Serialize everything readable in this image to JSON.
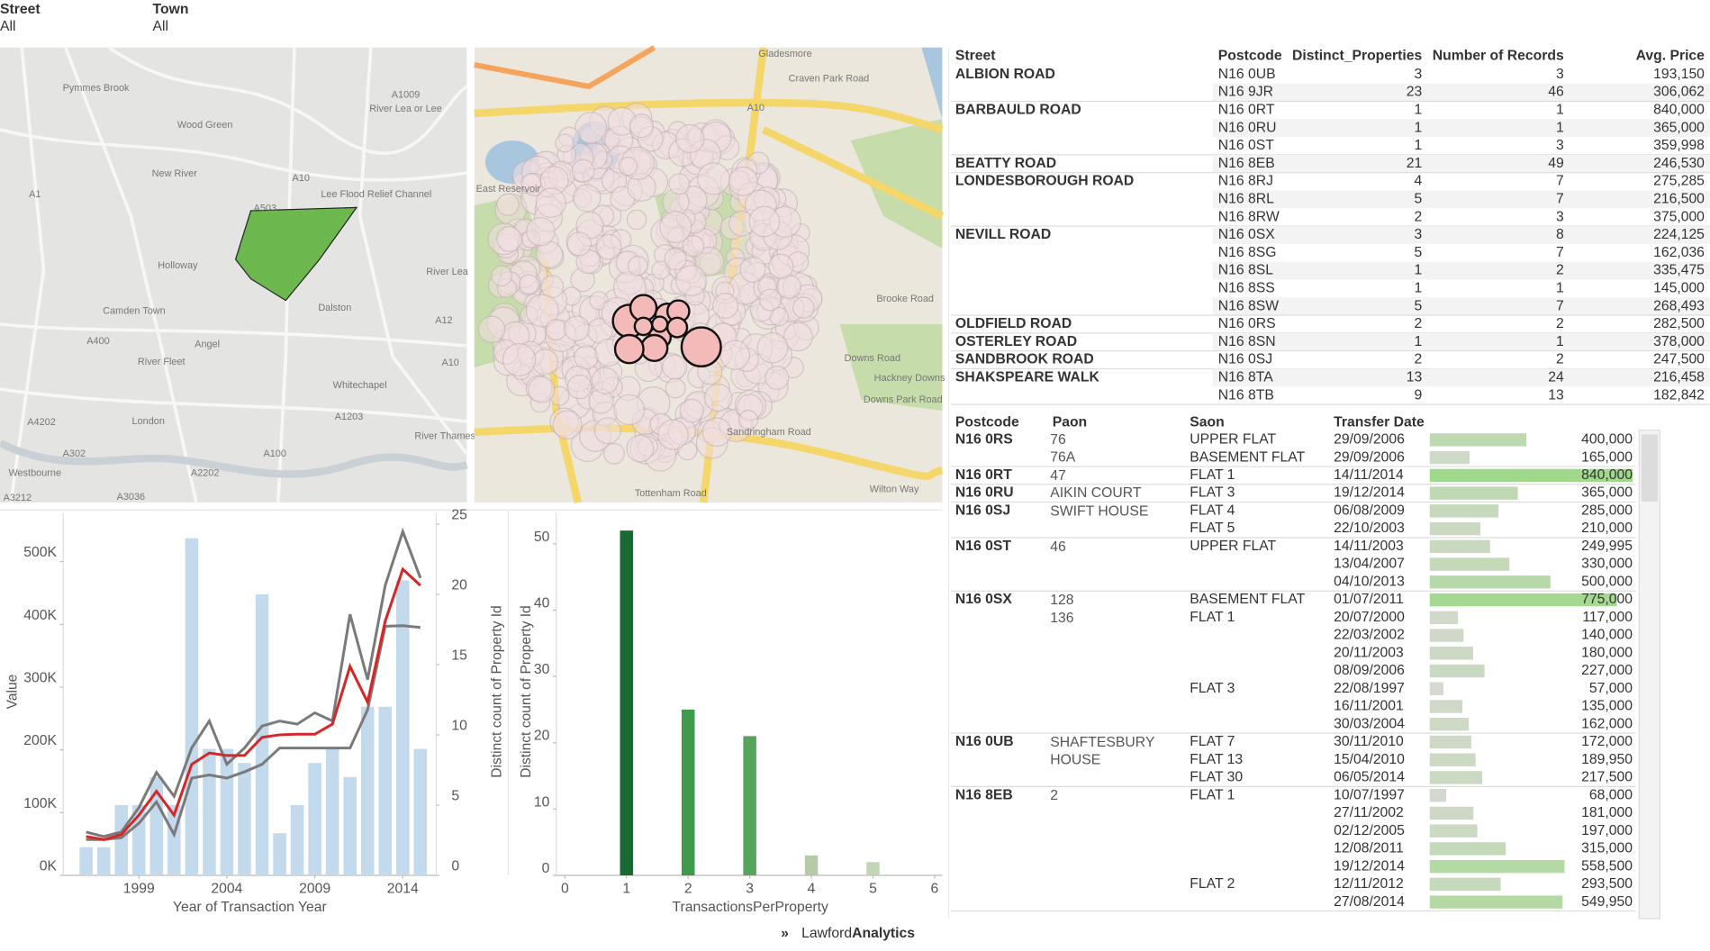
{
  "filters": [
    {
      "label": "Street",
      "value": "All"
    },
    {
      "label": "Town",
      "value": "All"
    }
  ],
  "maps": [
    {
      "labels": [
        "Pymmes Brook",
        "Wood Green",
        "A1009",
        "River Lea or Lee",
        "New River",
        "A10",
        "Lee Flood Relief Channel",
        "A1",
        "A503",
        "Holloway",
        "River Lea",
        "Camden Town",
        "Dalston",
        "A12",
        "A400",
        "Angel",
        "River Fleet",
        "A10",
        "Whitechapel",
        "London",
        "A1203",
        "A4202",
        "River Thames",
        "A302",
        "A100",
        "Westbourne",
        "A2202",
        "A3212",
        "A3036"
      ]
    },
    {
      "labels": [
        "Gladesmore",
        "Craven Park Road",
        "A10",
        "East Reservoir",
        "Brooke Road",
        "Downs Road",
        "Hackney Downs",
        "Downs Park Road",
        "Sandringham Road",
        "Tottenham Road",
        "Wilton Way"
      ]
    }
  ],
  "chart_data": [
    {
      "type": "combo",
      "xlabel": "Year of Transaction Year",
      "ylabel": "Value",
      "y2label": "Distinct count of Property Id",
      "x": [
        1996,
        1997,
        1998,
        1999,
        2000,
        2001,
        2002,
        2003,
        2004,
        2005,
        2006,
        2007,
        2008,
        2009,
        2010,
        2011,
        2012,
        2013,
        2014,
        2015
      ],
      "series": [
        {
          "type": "bar",
          "axis": "y2",
          "color": "#c3d9ec",
          "values": [
            2,
            2,
            5,
            5,
            7,
            5,
            24,
            9,
            9,
            8,
            20,
            3,
            5,
            8,
            9,
            7,
            12,
            12,
            21,
            9
          ]
        },
        {
          "type": "line",
          "color": "#7a7a7a",
          "values": [
            69000,
            62000,
            69000,
            108000,
            164000,
            126000,
            203000,
            246000,
            177000,
            203000,
            238000,
            246000,
            241000,
            259000,
            246000,
            416000,
            312000,
            462000,
            548000,
            474000
          ]
        },
        {
          "type": "line",
          "color": "#7a7a7a",
          "values": [
            57000,
            57000,
            60000,
            83000,
            117000,
            65000,
            155000,
            160000,
            155000,
            165000,
            177000,
            203000,
            203000,
            203000,
            203000,
            203000,
            264000,
            397000,
            398000,
            395000
          ]
        },
        {
          "type": "line",
          "color": "#d62728",
          "values": [
            62000,
            57000,
            65000,
            96000,
            134000,
            96000,
            177000,
            195000,
            191000,
            191000,
            220000,
            224000,
            225000,
            225000,
            241000,
            333000,
            276000,
            405000,
            488000,
            462000
          ]
        }
      ],
      "xlim": [
        1994.7,
        2015.9
      ],
      "xticks": [
        1999,
        2004,
        2009,
        2014
      ],
      "ylim": [
        0,
        577000
      ],
      "yticks": [
        {
          "value": 0,
          "label": "0K"
        },
        {
          "value": 100000,
          "label": "100K"
        },
        {
          "value": 200000,
          "label": "200K"
        },
        {
          "value": 300000,
          "label": "300K"
        },
        {
          "value": 400000,
          "label": "400K"
        },
        {
          "value": 500000,
          "label": "500K"
        }
      ],
      "y2lim": [
        0,
        25.77
      ],
      "y2ticks": [
        0,
        5,
        10,
        15,
        20,
        25
      ],
      "grid": false
    },
    {
      "type": "bar",
      "xlabel": "TransactionsPerProperty",
      "ylabel": "Distinct count of Property Id",
      "x": [
        1,
        2,
        3,
        4,
        5
      ],
      "values": [
        52,
        25,
        21,
        3,
        2
      ],
      "colors": [
        "#1a6b32",
        "#3f9a4b",
        "#55a65c",
        "#b5cba7",
        "#c2d6b6"
      ],
      "xlim": [
        0,
        6
      ],
      "xticks": [
        0,
        1,
        2,
        3,
        4,
        5,
        6
      ],
      "ylim": [
        0,
        54.6
      ],
      "yticks": [
        0,
        10,
        20,
        30,
        40,
        50
      ],
      "grid": false
    }
  ],
  "street_table": {
    "columns": [
      "Street",
      "Postcode",
      "Distinct_Properties",
      "Number of Records",
      "Avg. Price"
    ],
    "groups": [
      {
        "street": "ALBION ROAD",
        "rows": [
          {
            "postcode": "N16 0UB",
            "distinct": 3,
            "records": 3,
            "avg_price": "193,150"
          },
          {
            "postcode": "N16 9JR",
            "distinct": 23,
            "records": 46,
            "avg_price": "306,062"
          }
        ]
      },
      {
        "street": "BARBAULD ROAD",
        "rows": [
          {
            "postcode": "N16 0RT",
            "distinct": 1,
            "records": 1,
            "avg_price": "840,000"
          },
          {
            "postcode": "N16 0RU",
            "distinct": 1,
            "records": 1,
            "avg_price": "365,000"
          },
          {
            "postcode": "N16 0ST",
            "distinct": 1,
            "records": 3,
            "avg_price": "359,998"
          }
        ]
      },
      {
        "street": "BEATTY ROAD",
        "rows": [
          {
            "postcode": "N16 8EB",
            "distinct": 21,
            "records": 49,
            "avg_price": "246,530"
          }
        ]
      },
      {
        "street": "LONDESBOROUGH ROAD",
        "rows": [
          {
            "postcode": "N16 8RJ",
            "distinct": 4,
            "records": 7,
            "avg_price": "275,285"
          },
          {
            "postcode": "N16 8RL",
            "distinct": 5,
            "records": 7,
            "avg_price": "216,500"
          },
          {
            "postcode": "N16 8RW",
            "distinct": 2,
            "records": 3,
            "avg_price": "375,000"
          }
        ]
      },
      {
        "street": "NEVILL ROAD",
        "rows": [
          {
            "postcode": "N16 0SX",
            "distinct": 3,
            "records": 8,
            "avg_price": "224,125"
          },
          {
            "postcode": "N16 8SG",
            "distinct": 5,
            "records": 7,
            "avg_price": "162,036"
          },
          {
            "postcode": "N16 8SL",
            "distinct": 1,
            "records": 2,
            "avg_price": "335,475"
          },
          {
            "postcode": "N16 8SS",
            "distinct": 1,
            "records": 1,
            "avg_price": "145,000"
          },
          {
            "postcode": "N16 8SW",
            "distinct": 5,
            "records": 7,
            "avg_price": "268,493"
          }
        ]
      },
      {
        "street": "OLDFIELD ROAD",
        "rows": [
          {
            "postcode": "N16 0RS",
            "distinct": 2,
            "records": 2,
            "avg_price": "282,500"
          }
        ]
      },
      {
        "street": "OSTERLEY ROAD",
        "rows": [
          {
            "postcode": "N16 8SN",
            "distinct": 1,
            "records": 1,
            "avg_price": "378,000"
          }
        ]
      },
      {
        "street": "SANDBROOK ROAD",
        "rows": [
          {
            "postcode": "N16 0SJ",
            "distinct": 2,
            "records": 2,
            "avg_price": "247,500"
          }
        ]
      },
      {
        "street": "SHAKSPEARE WALK",
        "rows": [
          {
            "postcode": "N16 8TA",
            "distinct": 13,
            "records": 24,
            "avg_price": "216,458"
          },
          {
            "postcode": "N16 8TB",
            "distinct": 9,
            "records": 13,
            "avg_price": "182,842"
          }
        ]
      }
    ]
  },
  "sales_table": {
    "columns": [
      "Postcode",
      "Paon",
      "Saon",
      "Transfer Date"
    ],
    "groups": [
      {
        "postcode": "N16 0RS",
        "paons": [
          {
            "paon": "76",
            "saons": [
              {
                "saon": "UPPER FLAT",
                "sales": [
                  {
                    "date": "29/09/2006",
                    "price": 400000,
                    "price_label": "400,000"
                  }
                ]
              }
            ]
          },
          {
            "paon": "76A",
            "saons": [
              {
                "saon": "BASEMENT FLAT",
                "sales": [
                  {
                    "date": "29/09/2006",
                    "price": 165000,
                    "price_label": "165,000"
                  }
                ]
              }
            ]
          }
        ]
      },
      {
        "postcode": "N16 0RT",
        "paons": [
          {
            "paon": "47",
            "saons": [
              {
                "saon": "FLAT 1",
                "sales": [
                  {
                    "date": "14/11/2014",
                    "price": 840000,
                    "price_label": "840,000"
                  }
                ]
              }
            ]
          }
        ]
      },
      {
        "postcode": "N16 0RU",
        "paons": [
          {
            "paon": "AIKIN COURT",
            "saons": [
              {
                "saon": "FLAT 3",
                "sales": [
                  {
                    "date": "19/12/2014",
                    "price": 365000,
                    "price_label": "365,000"
                  }
                ]
              }
            ]
          }
        ]
      },
      {
        "postcode": "N16 0SJ",
        "paons": [
          {
            "paon": "SWIFT HOUSE",
            "saons": [
              {
                "saon": "FLAT 4",
                "sales": [
                  {
                    "date": "06/08/2009",
                    "price": 285000,
                    "price_label": "285,000"
                  }
                ]
              },
              {
                "saon": "FLAT 5",
                "sales": [
                  {
                    "date": "22/10/2003",
                    "price": 210000,
                    "price_label": "210,000"
                  }
                ]
              }
            ]
          }
        ]
      },
      {
        "postcode": "N16 0ST",
        "paons": [
          {
            "paon": "46",
            "saons": [
              {
                "saon": "UPPER FLAT",
                "sales": [
                  {
                    "date": "14/11/2003",
                    "price": 249995,
                    "price_label": "249,995"
                  },
                  {
                    "date": "13/04/2007",
                    "price": 330000,
                    "price_label": "330,000"
                  },
                  {
                    "date": "04/10/2013",
                    "price": 500000,
                    "price_label": "500,000"
                  }
                ]
              }
            ]
          }
        ]
      },
      {
        "postcode": "N16 0SX",
        "paons": [
          {
            "paon": "128",
            "saons": [
              {
                "saon": "BASEMENT FLAT",
                "sales": [
                  {
                    "date": "01/07/2011",
                    "price": 775000,
                    "price_label": "775,000"
                  }
                ]
              }
            ]
          },
          {
            "paon": "136",
            "saons": [
              {
                "saon": "FLAT 1",
                "sales": [
                  {
                    "date": "20/07/2000",
                    "price": 117000,
                    "price_label": "117,000"
                  },
                  {
                    "date": "22/03/2002",
                    "price": 140000,
                    "price_label": "140,000"
                  },
                  {
                    "date": "20/11/2003",
                    "price": 180000,
                    "price_label": "180,000"
                  },
                  {
                    "date": "08/09/2006",
                    "price": 227000,
                    "price_label": "227,000"
                  }
                ]
              },
              {
                "saon": "FLAT 3",
                "sales": [
                  {
                    "date": "22/08/1997",
                    "price": 57000,
                    "price_label": "57,000"
                  },
                  {
                    "date": "16/11/2001",
                    "price": 135000,
                    "price_label": "135,000"
                  },
                  {
                    "date": "30/03/2004",
                    "price": 162000,
                    "price_label": "162,000"
                  }
                ]
              }
            ]
          }
        ]
      },
      {
        "postcode": "N16 0UB",
        "paons": [
          {
            "paon": "SHAFTESBURY HOUSE",
            "saons": [
              {
                "saon": "FLAT 7",
                "sales": [
                  {
                    "date": "30/11/2010",
                    "price": 172000,
                    "price_label": "172,000"
                  }
                ]
              },
              {
                "saon": "FLAT 13",
                "sales": [
                  {
                    "date": "15/04/2010",
                    "price": 189950,
                    "price_label": "189,950"
                  }
                ]
              },
              {
                "saon": "FLAT 30",
                "sales": [
                  {
                    "date": "06/05/2014",
                    "price": 217500,
                    "price_label": "217,500"
                  }
                ]
              }
            ]
          }
        ]
      },
      {
        "postcode": "N16 8EB",
        "paons": [
          {
            "paon": "2",
            "saons": [
              {
                "saon": "FLAT 1",
                "sales": [
                  {
                    "date": "10/07/1997",
                    "price": 68000,
                    "price_label": "68,000"
                  },
                  {
                    "date": "27/11/2002",
                    "price": 181000,
                    "price_label": "181,000"
                  },
                  {
                    "date": "02/12/2005",
                    "price": 197000,
                    "price_label": "197,000"
                  },
                  {
                    "date": "12/08/2011",
                    "price": 315000,
                    "price_label": "315,000"
                  },
                  {
                    "date": "19/12/2014",
                    "price": 558500,
                    "price_label": "558,500"
                  }
                ]
              },
              {
                "saon": "FLAT 2",
                "sales": [
                  {
                    "date": "12/11/2012",
                    "price": 293500,
                    "price_label": "293,500"
                  },
                  {
                    "date": "27/08/2014",
                    "price": 549950,
                    "price_label": "549,950"
                  }
                ]
              }
            ]
          }
        ]
      }
    ]
  },
  "brand": {
    "name": "Lawford",
    "emphasis": "Analytics"
  }
}
